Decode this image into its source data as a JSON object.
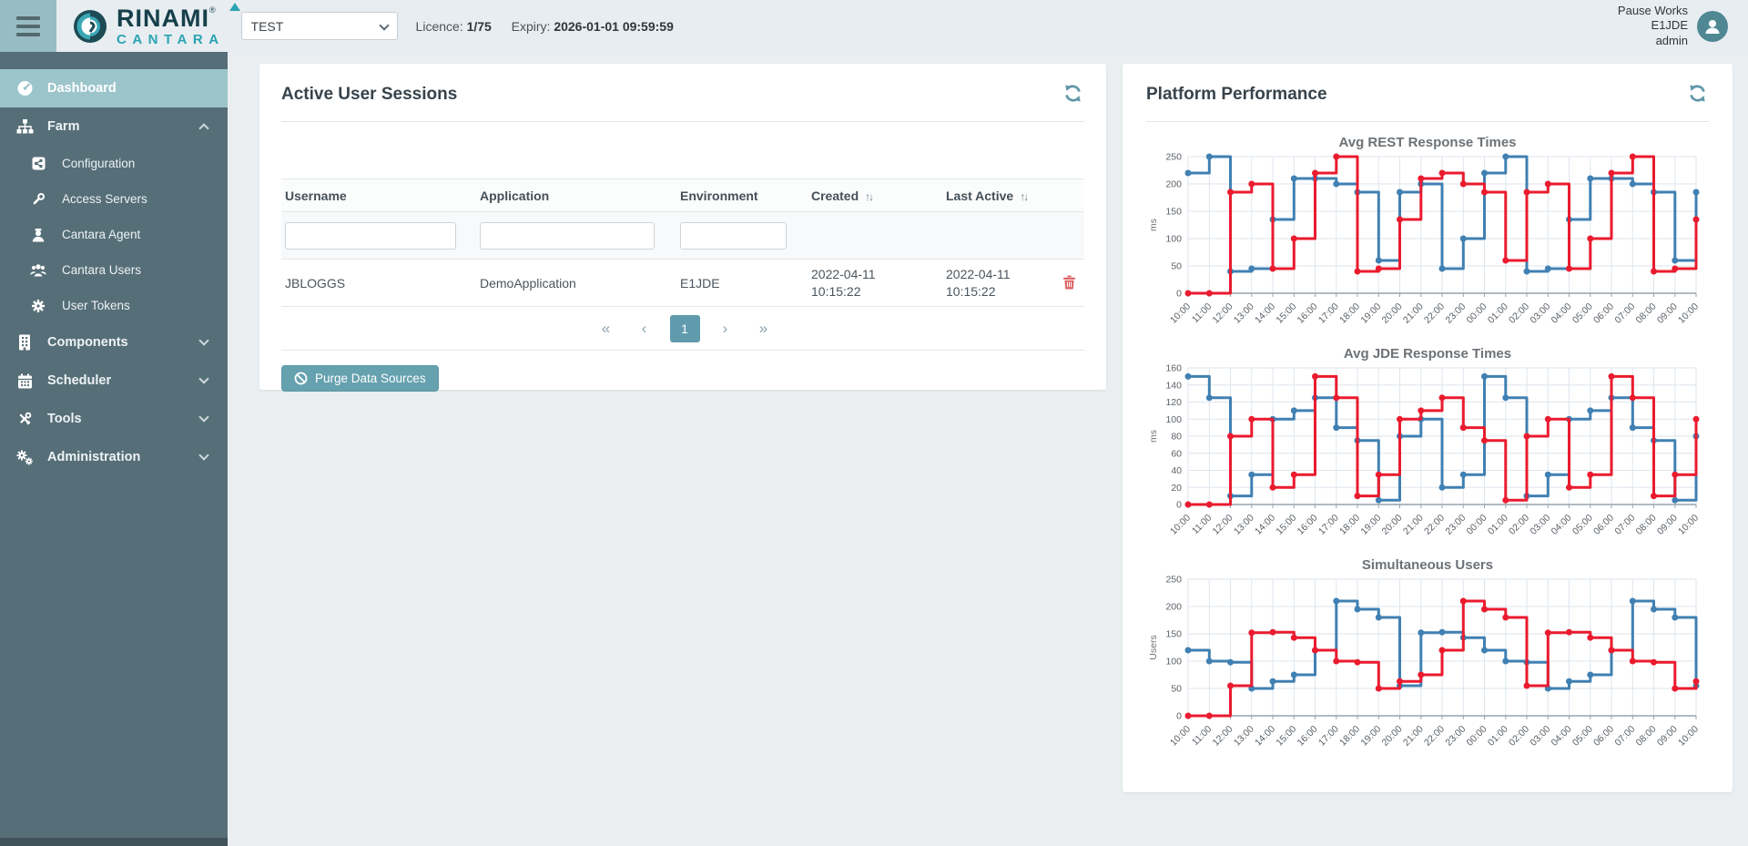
{
  "header": {
    "brand": {
      "name": "RINAMI",
      "registered": "®",
      "sub": "CANTARA"
    },
    "environment_select": {
      "value": "TEST"
    },
    "licence_label": "Licence:",
    "licence_value": "1/75",
    "expiry_label": "Expiry:",
    "expiry_value": "2026-01-01 09:59:59",
    "user": {
      "line1": "Pause Works",
      "line2": "E1JDE",
      "line3": "admin"
    }
  },
  "sidebar": {
    "items": [
      {
        "label": "Dashboard",
        "active": true
      },
      {
        "label": "Farm",
        "expanded": true,
        "children": [
          "Configuration",
          "Access Servers",
          "Cantara Agent",
          "Cantara Users",
          "User Tokens"
        ]
      },
      {
        "label": "Components"
      },
      {
        "label": "Scheduler"
      },
      {
        "label": "Tools"
      },
      {
        "label": "Administration"
      }
    ]
  },
  "sessions_panel": {
    "title": "Active User Sessions",
    "table": {
      "columns": [
        "Username",
        "Application",
        "Environment",
        "Created",
        "Last Active"
      ],
      "sort_icon": "↑↓",
      "filters": {
        "username": "",
        "application": "",
        "environment": ""
      },
      "rows": [
        {
          "username": "JBLOGGS",
          "application": "DemoApplication",
          "environment": "E1JDE",
          "created": "2022-04-11 10:15:22",
          "last_active": "2022-04-11 10:15:22"
        }
      ]
    },
    "pagination": {
      "first": "«",
      "prev": "‹",
      "page": "1",
      "next": "›",
      "last": "»"
    },
    "purge_button": "Purge Data Sources"
  },
  "performance_panel": {
    "title": "Platform Performance",
    "categories": [
      "10:00",
      "11:00",
      "12:00",
      "13:00",
      "14:00",
      "15:00",
      "16:00",
      "17:00",
      "18:00",
      "19:00",
      "20:00",
      "21:00",
      "22:00",
      "23:00",
      "00:00",
      "01:00",
      "02:00",
      "03:00",
      "04:00",
      "05:00",
      "06:00",
      "07:00",
      "08:00",
      "09:00",
      "10:00"
    ],
    "charts": [
      {
        "type": "step-line",
        "title": "Avg REST Response Times",
        "ylabel": "ms",
        "ylim": [
          0,
          250
        ],
        "ystep": 50,
        "yticks": [
          0,
          50,
          100,
          150,
          200,
          250
        ],
        "grid": true,
        "series": [
          {
            "name": "series-blue",
            "color": "#4080b2",
            "values": [
              220,
              250,
              40,
              45,
              135,
              210,
              210,
              200,
              185,
              60,
              185,
              200,
              45,
              100,
              220,
              250,
              40,
              45,
              135,
              210,
              210,
              200,
              185,
              60,
              185
            ]
          },
          {
            "name": "series-red",
            "color": "#ea1b2e",
            "values": [
              0,
              0,
              185,
              200,
              45,
              100,
              220,
              250,
              40,
              45,
              135,
              210,
              220,
              200,
              185,
              60,
              185,
              200,
              45,
              100,
              220,
              250,
              40,
              45,
              135
            ]
          }
        ]
      },
      {
        "type": "step-line",
        "title": "Avg JDE Response Times",
        "ylabel": "ms",
        "ylim": [
          0,
          160
        ],
        "ystep": 20,
        "yticks": [
          0,
          20,
          40,
          60,
          80,
          100,
          120,
          140,
          160
        ],
        "grid": true,
        "series": [
          {
            "name": "series-blue",
            "color": "#4080b2",
            "values": [
              150,
              125,
              10,
              35,
              100,
              110,
              125,
              90,
              75,
              5,
              80,
              100,
              20,
              35,
              150,
              125,
              10,
              35,
              100,
              110,
              125,
              90,
              75,
              5,
              80
            ]
          },
          {
            "name": "series-red",
            "color": "#ea1b2e",
            "values": [
              0,
              0,
              80,
              100,
              20,
              35,
              150,
              125,
              10,
              35,
              100,
              110,
              125,
              90,
              75,
              5,
              80,
              100,
              20,
              35,
              150,
              125,
              10,
              35,
              100
            ]
          }
        ]
      },
      {
        "type": "step-line",
        "title": "Simultaneous Users",
        "ylabel": "Users",
        "ylim": [
          0,
          250
        ],
        "ystep": 50,
        "yticks": [
          0,
          50,
          100,
          150,
          200,
          250
        ],
        "grid": true,
        "series": [
          {
            "name": "series-blue",
            "color": "#4080b2",
            "values": [
              120,
              100,
              98,
              50,
              63,
              75,
              120,
              210,
              195,
              180,
              55,
              152,
              153,
              143,
              120,
              100,
              98,
              50,
              63,
              75,
              120,
              210,
              195,
              180,
              55
            ]
          },
          {
            "name": "series-red",
            "color": "#ea1b2e",
            "values": [
              0,
              0,
              55,
              152,
              153,
              143,
              120,
              100,
              98,
              50,
              63,
              75,
              120,
              210,
              195,
              180,
              55,
              152,
              153,
              143,
              120,
              100,
              98,
              50,
              63
            ]
          }
        ]
      }
    ]
  }
}
